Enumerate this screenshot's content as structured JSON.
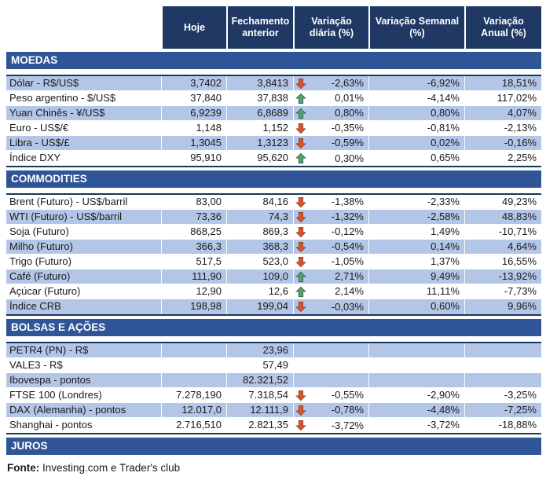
{
  "header": {
    "columns": [
      "Hoje",
      "Fechamento anterior",
      "Variação diária (%)",
      "Variação Semanal (%)",
      "Variação Anual (%)"
    ]
  },
  "colors": {
    "header_bg": "#1F3864",
    "section_bg": "#2F5597",
    "row_alt_bg": "#B4C6E7",
    "row_bg": "#FFFFFF",
    "block_border": "#17375E",
    "up_arrow_fill": "#56A271",
    "up_arrow_stroke": "#2F5E43",
    "down_arrow_fill": "#D8552F",
    "down_arrow_stroke": "#943E20"
  },
  "sections": [
    {
      "label": "MOEDAS",
      "rows": [
        {
          "label": "Dólar - R$/US$",
          "hoje": "3,7402",
          "fechamento_anterior": "3,8413",
          "trend": "down",
          "variacao_diaria": "-2,63%",
          "variacao_semanal": "-6,92%",
          "variacao_anual": "18,51%"
        },
        {
          "label": "Peso argentino - $/US$",
          "hoje": "37,840",
          "fechamento_anterior": "37,838",
          "trend": "up",
          "variacao_diaria": "0,01%",
          "variacao_semanal": "-4,14%",
          "variacao_anual": "117,02%"
        },
        {
          "label": "Yuan Chinês - ¥/US$",
          "hoje": "6,9239",
          "fechamento_anterior": "6,8689",
          "trend": "up",
          "variacao_diaria": "0,80%",
          "variacao_semanal": "0,80%",
          "variacao_anual": "4,07%"
        },
        {
          "label": "Euro - US$/€",
          "hoje": "1,148",
          "fechamento_anterior": "1,152",
          "trend": "down",
          "variacao_diaria": "-0,35%",
          "variacao_semanal": "-0,81%",
          "variacao_anual": "-2,13%"
        },
        {
          "label": "Libra - US$/£",
          "hoje": "1,3045",
          "fechamento_anterior": "1,3123",
          "trend": "down",
          "variacao_diaria": "-0,59%",
          "variacao_semanal": "0,02%",
          "variacao_anual": "-0,16%"
        },
        {
          "label": "Índice DXY",
          "hoje": "95,910",
          "fechamento_anterior": "95,620",
          "trend": "up",
          "variacao_diaria": "0,30%",
          "variacao_semanal": "0,65%",
          "variacao_anual": "2,25%"
        }
      ]
    },
    {
      "label": "COMMODITIES",
      "rows": [
        {
          "label": "Brent (Futuro) - US$/barril",
          "hoje": "83,00",
          "fechamento_anterior": "84,16",
          "trend": "down",
          "variacao_diaria": "-1,38%",
          "variacao_semanal": "-2,33%",
          "variacao_anual": "49,23%"
        },
        {
          "label": "WTI (Futuro) - US$/barril",
          "hoje": "73,36",
          "fechamento_anterior": "74,3",
          "trend": "down",
          "variacao_diaria": "-1,32%",
          "variacao_semanal": "-2,58%",
          "variacao_anual": "48,83%"
        },
        {
          "label": "Soja (Futuro)",
          "hoje": "868,25",
          "fechamento_anterior": "869,3",
          "trend": "down",
          "variacao_diaria": "-0,12%",
          "variacao_semanal": "1,49%",
          "variacao_anual": "-10,71%"
        },
        {
          "label": "Milho (Futuro)",
          "hoje": "366,3",
          "fechamento_anterior": "368,3",
          "trend": "down",
          "variacao_diaria": "-0,54%",
          "variacao_semanal": "0,14%",
          "variacao_anual": "4,64%"
        },
        {
          "label": "Trigo (Futuro)",
          "hoje": "517,5",
          "fechamento_anterior": "523,0",
          "trend": "down",
          "variacao_diaria": "-1,05%",
          "variacao_semanal": "1,37%",
          "variacao_anual": "16,55%"
        },
        {
          "label": "Café (Futuro)",
          "hoje": "111,90",
          "fechamento_anterior": "109,0",
          "trend": "up",
          "variacao_diaria": "2,71%",
          "variacao_semanal": "9,49%",
          "variacao_anual": "-13,92%"
        },
        {
          "label": "Açúcar (Futuro)",
          "hoje": "12,90",
          "fechamento_anterior": "12,6",
          "trend": "up",
          "variacao_diaria": "2,14%",
          "variacao_semanal": "11,11%",
          "variacao_anual": "-7,73%"
        },
        {
          "label": "Índice CRB",
          "hoje": "198,98",
          "fechamento_anterior": "199,04",
          "trend": "down",
          "variacao_diaria": "-0,03%",
          "variacao_semanal": "0,60%",
          "variacao_anual": "9,96%"
        }
      ]
    },
    {
      "label": "BOLSAS E AÇÕES",
      "rows": [
        {
          "label": "PETR4 (PN) - R$",
          "hoje": "",
          "fechamento_anterior": "23,96",
          "trend": "",
          "variacao_diaria": "",
          "variacao_semanal": "",
          "variacao_anual": ""
        },
        {
          "label": "VALE3 - R$",
          "hoje": "",
          "fechamento_anterior": "57,49",
          "trend": "",
          "variacao_diaria": "",
          "variacao_semanal": "",
          "variacao_anual": ""
        },
        {
          "label": "Ibovespa - pontos",
          "hoje": "",
          "fechamento_anterior": "82.321,52",
          "trend": "",
          "variacao_diaria": "",
          "variacao_semanal": "",
          "variacao_anual": ""
        },
        {
          "label": "FTSE 100 (Londres)",
          "hoje": "7.278,190",
          "fechamento_anterior": "7.318,54",
          "trend": "down",
          "variacao_diaria": "-0,55%",
          "variacao_semanal": "-2,90%",
          "variacao_anual": "-3,25%"
        },
        {
          "label": "DAX (Alemanha) - pontos",
          "hoje": "12.017,0",
          "fechamento_anterior": "12.111,9",
          "trend": "down",
          "variacao_diaria": "-0,78%",
          "variacao_semanal": "-4,48%",
          "variacao_anual": "-7,25%"
        },
        {
          "label": "Shanghai - pontos",
          "hoje": "2.716,510",
          "fechamento_anterior": "2.821,35",
          "trend": "down",
          "variacao_diaria": "-3,72%",
          "variacao_semanal": "-3,72%",
          "variacao_anual": "-18,88%"
        }
      ]
    },
    {
      "label": "JUROS",
      "rows": []
    }
  ],
  "footer": {
    "source_label": "Fonte:",
    "source_text": " Investing.com e Trader's club"
  }
}
